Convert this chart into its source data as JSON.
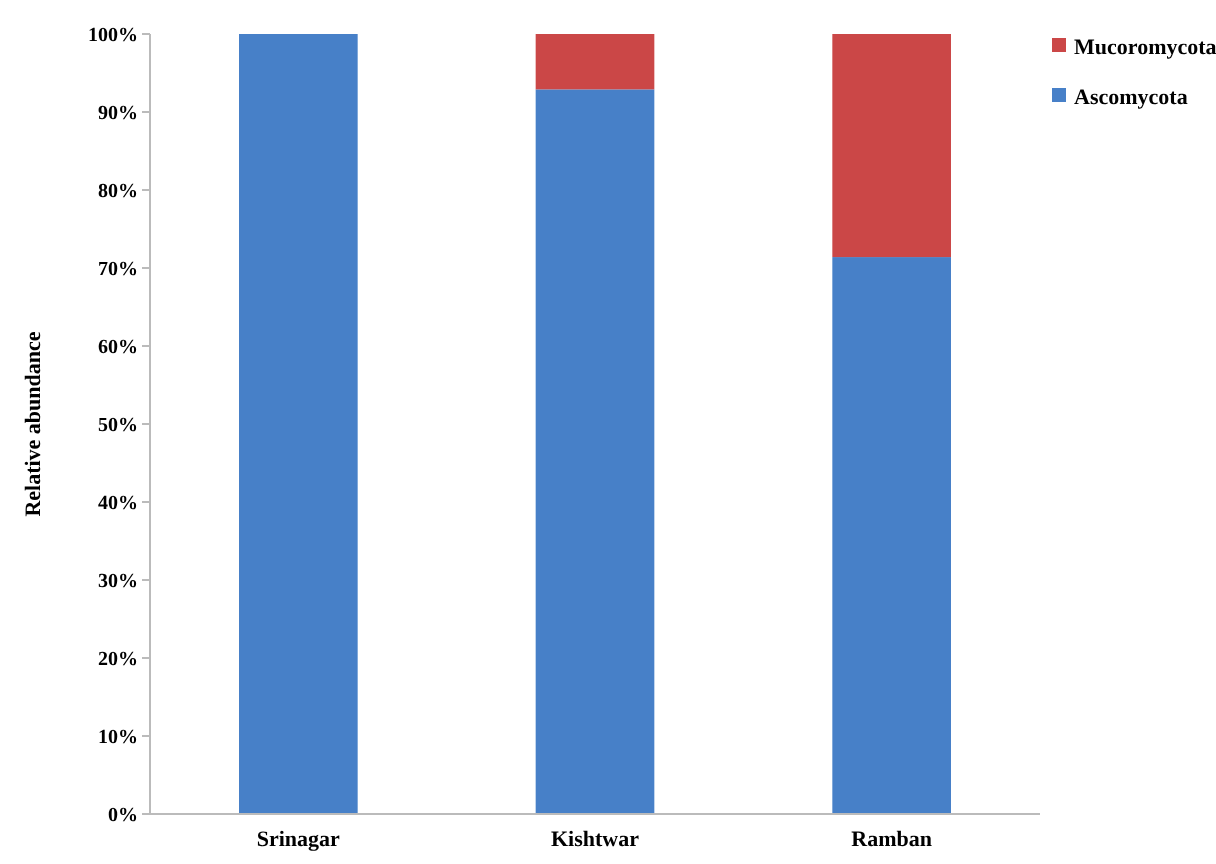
{
  "chart_data": {
    "type": "bar",
    "stacked": true,
    "ylabel": "Relative abundance",
    "categories": [
      "Srinagar",
      "Kishtwar",
      "Ramban"
    ],
    "series": [
      {
        "name": "Ascomycota",
        "color": "#4780c8",
        "values": [
          100,
          92.9,
          71.4
        ]
      },
      {
        "name": "Mucoromycota",
        "color": "#cb4747",
        "values": [
          0,
          7.1,
          28.6
        ]
      }
    ],
    "ylim": [
      0,
      100
    ],
    "yticks": [
      {
        "value": 0,
        "label": "0%"
      },
      {
        "value": 10,
        "label": "10%"
      },
      {
        "value": 20,
        "label": "20%"
      },
      {
        "value": 30,
        "label": "30%"
      },
      {
        "value": 40,
        "label": "40%"
      },
      {
        "value": 50,
        "label": "50%"
      },
      {
        "value": 60,
        "label": "60%"
      },
      {
        "value": 70,
        "label": "70%"
      },
      {
        "value": 80,
        "label": "80%"
      },
      {
        "value": 90,
        "label": "90%"
      },
      {
        "value": 100,
        "label": "100%"
      }
    ],
    "grid": false,
    "legend": "top right"
  }
}
